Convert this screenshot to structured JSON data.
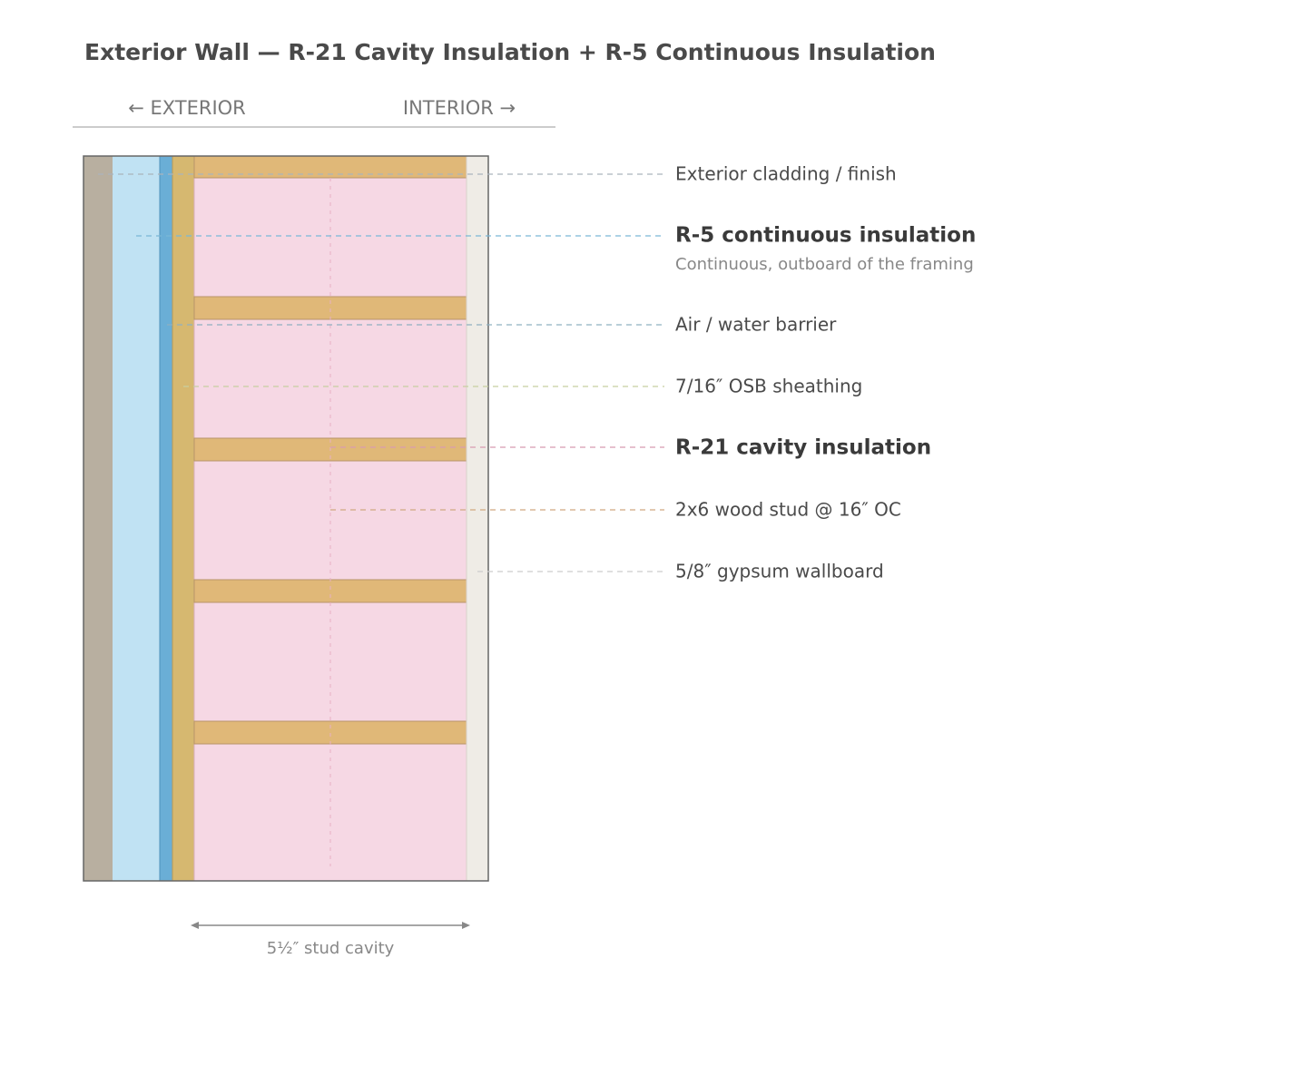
{
  "title": "Exterior Wall — R-21 Cavity Insulation + R-5 Continuous Insulation",
  "orientation": {
    "exterior": "← EXTERIOR",
    "interior": "INTERIOR →"
  },
  "layers": [
    {
      "label": "Exterior cladding / finish"
    },
    {
      "label": "R-5 continuous insulation",
      "note": "Continuous, outboard of the framing"
    },
    {
      "label": "Air / water barrier"
    },
    {
      "label": "7/16″ OSB sheathing"
    },
    {
      "label": "R-21 cavity insulation"
    },
    {
      "label": "2x6 wood stud @ 16″ OC"
    },
    {
      "label": "5/8″ gypsum wallboard"
    }
  ],
  "dimension": {
    "label": "5½″ stud cavity"
  }
}
